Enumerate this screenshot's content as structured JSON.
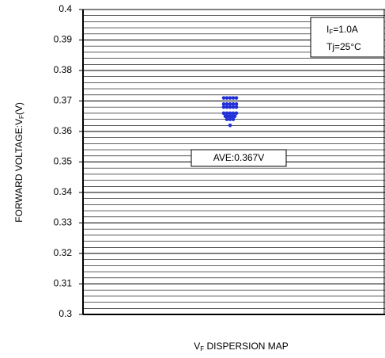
{
  "chart_data": {
    "type": "dotplot",
    "title": {
      "main": "V",
      "sub": "F",
      "rest": " DISPERSION MAP"
    },
    "y_label": {
      "main": "FORWARD VOLTAGE:V",
      "sub": "F",
      "rest": "(V)"
    },
    "condition": {
      "line1_main": "I",
      "line1_sub": "F",
      "line1_rest": "=1.0A",
      "line2": "Tj=25°C"
    },
    "average_label": "AVE:0.367V",
    "values": [
      0.371,
      0.371,
      0.371,
      0.371,
      0.371,
      0.369,
      0.369,
      0.369,
      0.369,
      0.369,
      0.368,
      0.368,
      0.368,
      0.368,
      0.368,
      0.366,
      0.366,
      0.366,
      0.366,
      0.366,
      0.365,
      0.365,
      0.365,
      0.365,
      0.364,
      0.364,
      0.364,
      0.362
    ],
    "color": "#1f2fd6",
    "ylim": [
      0.3,
      0.4
    ],
    "yticks": [
      0.3,
      0.31,
      0.32,
      0.33,
      0.34,
      0.35,
      0.36,
      0.37,
      0.38,
      0.39,
      0.4
    ],
    "minor_grid_step": 0.002,
    "grid": true
  }
}
